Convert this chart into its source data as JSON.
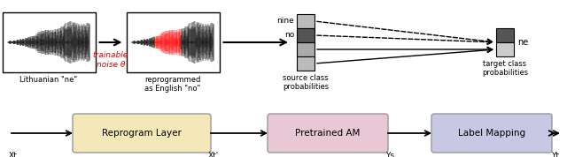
{
  "fig_width": 6.4,
  "fig_height": 1.78,
  "dpi": 100,
  "bg_color": "#ffffff",
  "label_lithuanian": "Lithuanian \"ne\"",
  "label_trainable": "trainable\nnoise θ",
  "label_reprogrammed": "reprogrammed\nas English \"no\"",
  "label_source": "source class\nprobabilities",
  "label_target": "target class\nprobabilities",
  "label_nine": "nine",
  "label_no": "no",
  "label_ne": "ne",
  "box1_label": "Reprogram Layer",
  "box2_label": "Pretrained AM",
  "box3_label": "Label Mapping",
  "box1_color": "#f5e8b8",
  "box2_color": "#e8c8d4",
  "box3_color": "#c8c8e4",
  "xt_label": "Xt",
  "xt_prime_label": "Xt'",
  "ys_label": "Ys",
  "yt_label": "Yt",
  "trainable_color": "#dd0000",
  "text_color": "#000000",
  "src_colors": [
    "#cccccc",
    "#cccccc",
    "#555555",
    "#cccccc"
  ],
  "tgt_colors": [
    "#555555",
    "#cccccc"
  ]
}
